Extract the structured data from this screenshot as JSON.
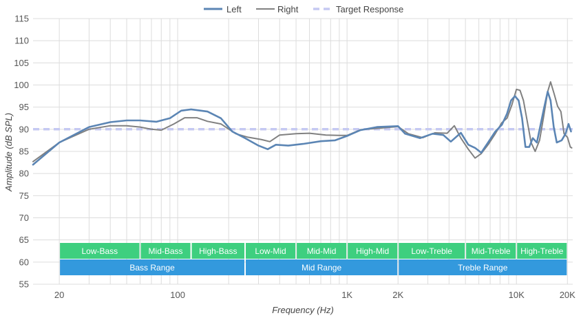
{
  "chart_data": {
    "type": "line",
    "xlabel": "Frequency (Hz)",
    "ylabel": "Amplitude (dB SPL)",
    "xscale": "log",
    "xlim": [
      14,
      21500
    ],
    "ylim": [
      55,
      115
    ],
    "grid": true,
    "legend_position": "top-center",
    "x_tick_labels": [
      {
        "value": 20,
        "label": "20"
      },
      {
        "value": 100,
        "label": "100"
      },
      {
        "value": 1000,
        "label": "1K"
      },
      {
        "value": 2000,
        "label": "2K"
      },
      {
        "value": 10000,
        "label": "10K"
      },
      {
        "value": 20000,
        "label": "20K"
      }
    ],
    "y_ticks": [
      55,
      60,
      65,
      70,
      75,
      80,
      85,
      90,
      95,
      100,
      105,
      110,
      115
    ],
    "series": [
      {
        "name": "Left",
        "color": "#5b85b4",
        "style": "solid",
        "points": [
          [
            14,
            82
          ],
          [
            20,
            87
          ],
          [
            30,
            90.5
          ],
          [
            40,
            91.6
          ],
          [
            50,
            92
          ],
          [
            60,
            92
          ],
          [
            75,
            91.7
          ],
          [
            90,
            92.5
          ],
          [
            105,
            94.2
          ],
          [
            120,
            94.5
          ],
          [
            150,
            94
          ],
          [
            180,
            92.5
          ],
          [
            210,
            89.5
          ],
          [
            250,
            88
          ],
          [
            300,
            86.3
          ],
          [
            340,
            85.5
          ],
          [
            380,
            86.5
          ],
          [
            450,
            86.3
          ],
          [
            550,
            86.7
          ],
          [
            700,
            87.3
          ],
          [
            850,
            87.5
          ],
          [
            1000,
            88.5
          ],
          [
            1200,
            89.8
          ],
          [
            1500,
            90.5
          ],
          [
            2000,
            90.7
          ],
          [
            2200,
            89
          ],
          [
            2700,
            88
          ],
          [
            3200,
            89
          ],
          [
            3700,
            88.7
          ],
          [
            4100,
            87.2
          ],
          [
            4700,
            89.2
          ],
          [
            5200,
            86.5
          ],
          [
            5700,
            85.8
          ],
          [
            6200,
            84.7
          ],
          [
            6800,
            87
          ],
          [
            7500,
            89.5
          ],
          [
            8200,
            91
          ],
          [
            8800,
            93.5
          ],
          [
            9300,
            96.5
          ],
          [
            9800,
            97.5
          ],
          [
            10300,
            96.5
          ],
          [
            10800,
            92.5
          ],
          [
            11300,
            86
          ],
          [
            11900,
            86
          ],
          [
            12500,
            88
          ],
          [
            13200,
            87
          ],
          [
            14500,
            94.5
          ],
          [
            15300,
            98.5
          ],
          [
            15900,
            96.5
          ],
          [
            16600,
            90.5
          ],
          [
            17300,
            87
          ],
          [
            18500,
            87.5
          ],
          [
            19500,
            89
          ],
          [
            20300,
            91.2
          ],
          [
            21000,
            89.5
          ]
        ]
      },
      {
        "name": "Right",
        "color": "#808080",
        "style": "solid",
        "points": [
          [
            14,
            82.7
          ],
          [
            20,
            87
          ],
          [
            30,
            90
          ],
          [
            40,
            90.8
          ],
          [
            50,
            90.8
          ],
          [
            60,
            90.5
          ],
          [
            70,
            90
          ],
          [
            80,
            89.8
          ],
          [
            95,
            91.2
          ],
          [
            110,
            92.6
          ],
          [
            130,
            92.6
          ],
          [
            150,
            91.8
          ],
          [
            180,
            91.2
          ],
          [
            220,
            89
          ],
          [
            260,
            88.2
          ],
          [
            310,
            87.7
          ],
          [
            350,
            87.2
          ],
          [
            400,
            88.7
          ],
          [
            500,
            89
          ],
          [
            600,
            89.1
          ],
          [
            750,
            88.7
          ],
          [
            900,
            88.6
          ],
          [
            1000,
            88.6
          ],
          [
            1200,
            89.9
          ],
          [
            1500,
            90.2
          ],
          [
            2000,
            90.6
          ],
          [
            2300,
            89
          ],
          [
            2800,
            88.1
          ],
          [
            3300,
            89.2
          ],
          [
            3900,
            89.1
          ],
          [
            4300,
            90.8
          ],
          [
            4700,
            88
          ],
          [
            5200,
            85.5
          ],
          [
            5700,
            83.5
          ],
          [
            6200,
            84.5
          ],
          [
            6800,
            86.5
          ],
          [
            7500,
            89
          ],
          [
            8200,
            91.5
          ],
          [
            8800,
            92.5
          ],
          [
            9400,
            95.5
          ],
          [
            10000,
            99
          ],
          [
            10500,
            98.8
          ],
          [
            11000,
            96.5
          ],
          [
            11500,
            92.5
          ],
          [
            12200,
            87
          ],
          [
            12900,
            85
          ],
          [
            13700,
            87.5
          ],
          [
            14500,
            93
          ],
          [
            15300,
            98.5
          ],
          [
            15900,
            100.7
          ],
          [
            16700,
            98
          ],
          [
            17500,
            95.2
          ],
          [
            18300,
            94
          ],
          [
            19100,
            89
          ],
          [
            20000,
            88.2
          ],
          [
            20800,
            86
          ],
          [
            21200,
            85.8
          ]
        ]
      },
      {
        "name": "Target Response",
        "color": "#c5c9f2",
        "style": "dashed",
        "points": [
          [
            14,
            90
          ],
          [
            21500,
            90
          ]
        ]
      }
    ],
    "bands": [
      {
        "label": "Low-Bass",
        "x0": 20,
        "x1": 60
      },
      {
        "label": "Mid-Bass",
        "x0": 60,
        "x1": 120
      },
      {
        "label": "High-Bass",
        "x0": 120,
        "x1": 250
      },
      {
        "label": "Low-Mid",
        "x0": 250,
        "x1": 500
      },
      {
        "label": "Mid-Mid",
        "x0": 500,
        "x1": 1000
      },
      {
        "label": "High-Mid",
        "x0": 1000,
        "x1": 2000
      },
      {
        "label": "Low-Treble",
        "x0": 2000,
        "x1": 5000
      },
      {
        "label": "Mid-Treble",
        "x0": 5000,
        "x1": 10000
      },
      {
        "label": "High-Treble",
        "x0": 10000,
        "x1": 20000
      }
    ],
    "ranges": [
      {
        "label": "Bass Range",
        "x0": 20,
        "x1": 250
      },
      {
        "label": "Mid Range",
        "x0": 250,
        "x1": 2000
      },
      {
        "label": "Treble Range",
        "x0": 2000,
        "x1": 20000
      }
    ],
    "band_color": "#3ecf7f",
    "range_color": "#3399dd"
  }
}
